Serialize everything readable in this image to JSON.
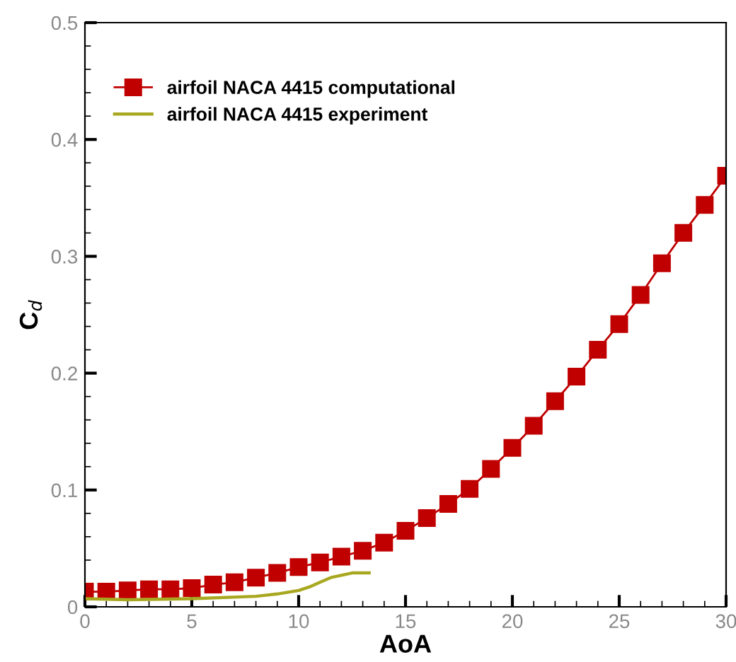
{
  "chart_data": {
    "type": "line",
    "xlabel": "AoA",
    "ylabel": "C$_{d}$",
    "xlim": [
      0,
      30
    ],
    "xticks": [
      0,
      5,
      10,
      15,
      20,
      25,
      30
    ],
    "ylim": [
      0,
      0.5
    ],
    "yticks": [
      0,
      0.1,
      0.2,
      0.3,
      0.4,
      0.5
    ],
    "legend": "top left",
    "grid": false,
    "series": [
      {
        "name": "airfoil NACA 4415 computational",
        "color": "#c00000",
        "marker": "square",
        "x": [
          0,
          1,
          2,
          3,
          4,
          5,
          6,
          7,
          8,
          9,
          10,
          11,
          12,
          13,
          14,
          15,
          16,
          17,
          18,
          19,
          20,
          21,
          22,
          23,
          24,
          25,
          26,
          27,
          28,
          29,
          30
        ],
        "values": [
          0.013,
          0.013,
          0.014,
          0.015,
          0.015,
          0.016,
          0.019,
          0.021,
          0.025,
          0.029,
          0.034,
          0.038,
          0.043,
          0.048,
          0.055,
          0.065,
          0.076,
          0.088,
          0.101,
          0.118,
          0.136,
          0.155,
          0.176,
          0.197,
          0.22,
          0.242,
          0.267,
          0.294,
          0.32,
          0.344,
          0.369
        ]
      },
      {
        "name": "airfoil NACA 4415 experiment",
        "color": "#a8a820",
        "marker": "none",
        "x": [
          0,
          2,
          5,
          8,
          9,
          10,
          10.5,
          11,
          11.5,
          12,
          12.5,
          13.3
        ],
        "values": [
          0.007,
          0.006,
          0.007,
          0.009,
          0.011,
          0.014,
          0.017,
          0.021,
          0.025,
          0.027,
          0.029,
          0.029
        ]
      }
    ]
  }
}
